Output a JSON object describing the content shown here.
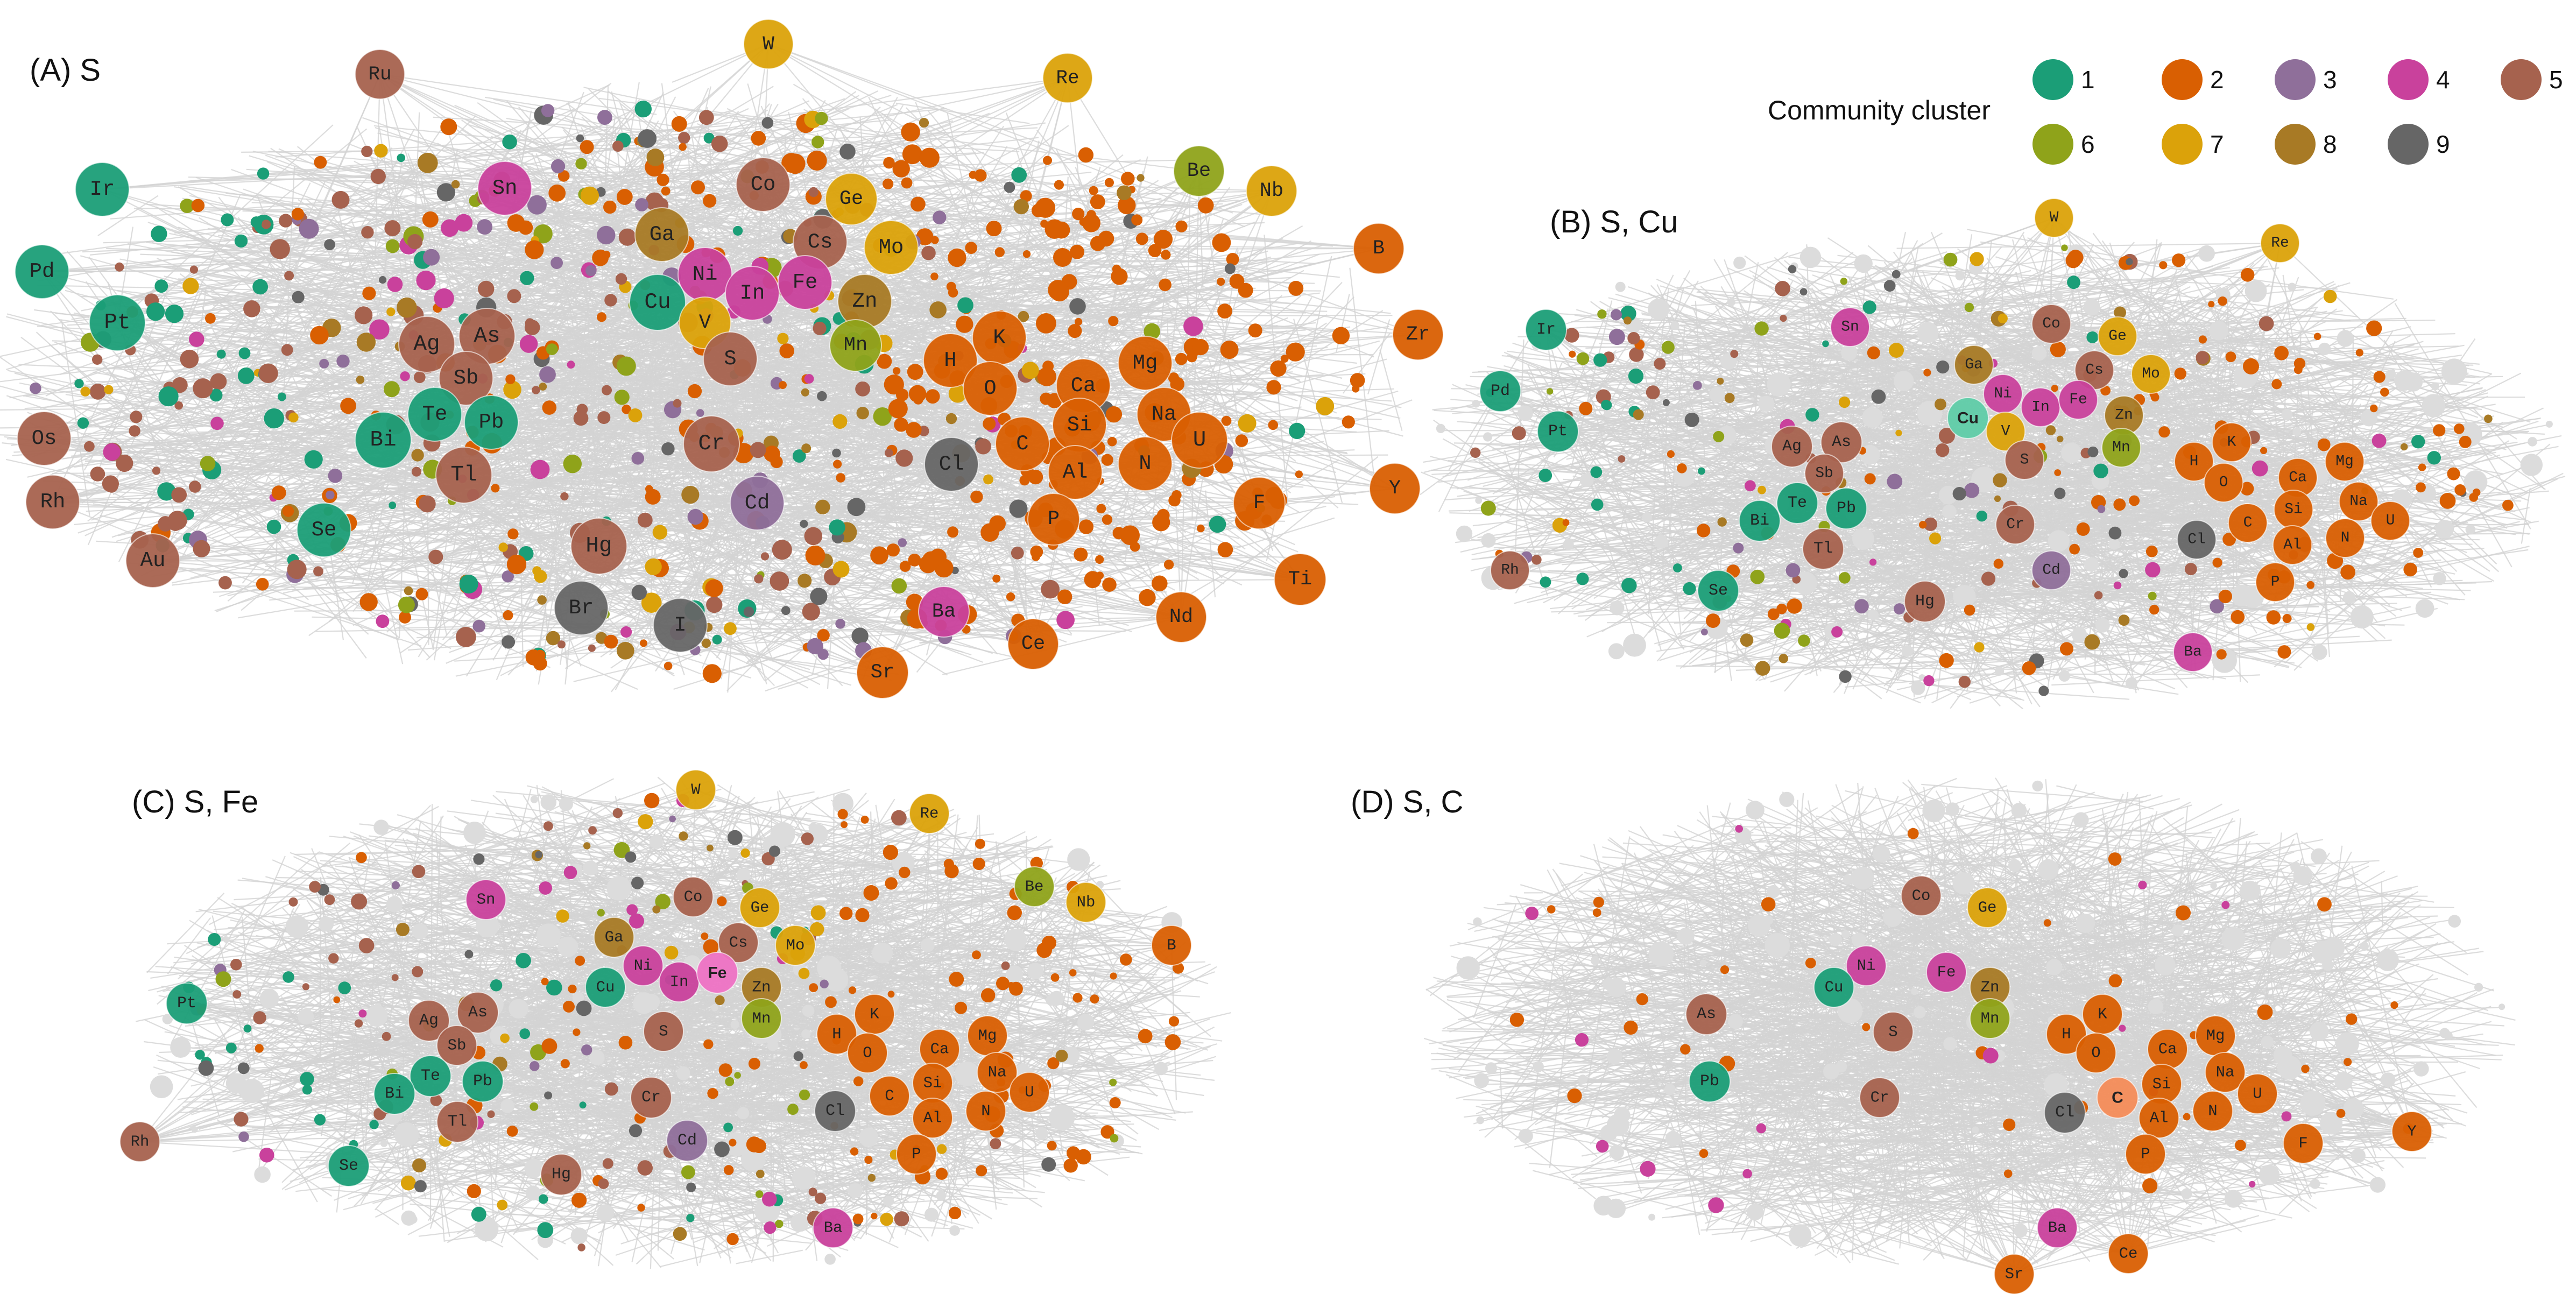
{
  "legend": {
    "title": "Community cluster",
    "items": [
      {
        "id": 1,
        "label": "1",
        "color": "#1b9e77"
      },
      {
        "id": 2,
        "label": "2",
        "color": "#d95f02"
      },
      {
        "id": 3,
        "label": "3",
        "color": "#8f6f9a"
      },
      {
        "id": 4,
        "label": "4",
        "color": "#c9419c"
      },
      {
        "id": 5,
        "label": "5",
        "color": "#a6624e"
      },
      {
        "id": 6,
        "label": "6",
        "color": "#8fa31a"
      },
      {
        "id": 7,
        "label": "7",
        "color": "#dba20a"
      },
      {
        "id": 8,
        "label": "8",
        "color": "#a87a25"
      },
      {
        "id": 9,
        "label": "9",
        "color": "#666666"
      }
    ]
  },
  "edge_color": "#d3d3d3",
  "panels": [
    {
      "id": "A",
      "title": "(A) S",
      "highlight": null,
      "nodes": [
        [
          "Ru",
          5
        ],
        [
          "W",
          7
        ],
        [
          "Re",
          7
        ],
        [
          "Ir",
          1
        ],
        [
          "Sn",
          4
        ],
        [
          "Co",
          5
        ],
        [
          "Ge",
          7
        ],
        [
          "Be",
          6
        ],
        [
          "Nb",
          7
        ],
        [
          "Ga",
          8
        ],
        [
          "Cs",
          5
        ],
        [
          "Mo",
          7
        ],
        [
          "B",
          2
        ],
        [
          "Pd",
          1
        ],
        [
          "Ni",
          4
        ],
        [
          "In",
          4
        ],
        [
          "Fe",
          4
        ],
        [
          "Zn",
          8
        ],
        [
          "Pt",
          1
        ],
        [
          "Cu",
          1
        ],
        [
          "V",
          7
        ],
        [
          "Mn",
          6
        ],
        [
          "Zr",
          2
        ],
        [
          "Ag",
          5
        ],
        [
          "As",
          5
        ],
        [
          "S",
          5
        ],
        [
          "H",
          2
        ],
        [
          "K",
          2
        ],
        [
          "Mg",
          2
        ],
        [
          "Sb",
          5
        ],
        [
          "O",
          2
        ],
        [
          "Ca",
          2
        ],
        [
          "Te",
          1
        ],
        [
          "Pb",
          1
        ],
        [
          "Na",
          2
        ],
        [
          "Os",
          5
        ],
        [
          "Bi",
          1
        ],
        [
          "Si",
          2
        ],
        [
          "Cr",
          5
        ],
        [
          "C",
          2
        ],
        [
          "U",
          2
        ],
        [
          "Tl",
          5
        ],
        [
          "Cl",
          9
        ],
        [
          "Al",
          2
        ],
        [
          "N",
          2
        ],
        [
          "Rh",
          5
        ],
        [
          "Cd",
          3
        ],
        [
          "F",
          2
        ],
        [
          "Y",
          2
        ],
        [
          "Se",
          1
        ],
        [
          "P",
          2
        ],
        [
          "Hg",
          5
        ],
        [
          "Au",
          5
        ],
        [
          "Ti",
          2
        ],
        [
          "Br",
          9
        ],
        [
          "Ba",
          4
        ],
        [
          "I",
          9
        ],
        [
          "Nd",
          2
        ],
        [
          "Ce",
          2
        ],
        [
          "Sr",
          2
        ]
      ]
    },
    {
      "id": "B",
      "title": "(B) S, Cu",
      "highlight": "Cu",
      "nodes": [
        [
          "W",
          7
        ],
        [
          "Re",
          7
        ],
        [
          "Sn",
          4
        ],
        [
          "Co",
          5
        ],
        [
          "Ge",
          7
        ],
        [
          "Ir",
          1
        ],
        [
          "Ga",
          8
        ],
        [
          "Cs",
          5
        ],
        [
          "Mo",
          7
        ],
        [
          "Pd",
          1
        ],
        [
          "Ni",
          4
        ],
        [
          "In",
          4
        ],
        [
          "Fe",
          4
        ],
        [
          "Zn",
          8
        ],
        [
          "Cu",
          1
        ],
        [
          "V",
          7
        ],
        [
          "Pt",
          1
        ],
        [
          "Mn",
          6
        ],
        [
          "Ag",
          5
        ],
        [
          "As",
          5
        ],
        [
          "S",
          5
        ],
        [
          "H",
          2
        ],
        [
          "K",
          2
        ],
        [
          "Mg",
          2
        ],
        [
          "Sb",
          5
        ],
        [
          "O",
          2
        ],
        [
          "Ca",
          2
        ],
        [
          "Te",
          1
        ],
        [
          "Pb",
          1
        ],
        [
          "Na",
          2
        ],
        [
          "Si",
          2
        ],
        [
          "Bi",
          1
        ],
        [
          "Cr",
          5
        ],
        [
          "C",
          2
        ],
        [
          "U",
          2
        ],
        [
          "Tl",
          5
        ],
        [
          "Cl",
          9
        ],
        [
          "Al",
          2
        ],
        [
          "N",
          2
        ],
        [
          "Rh",
          5
        ],
        [
          "Cd",
          3
        ],
        [
          "P",
          2
        ],
        [
          "Se",
          1
        ],
        [
          "Hg",
          5
        ],
        [
          "Ba",
          4
        ]
      ]
    },
    {
      "id": "C",
      "title": "(C) S, Fe",
      "highlight": "Fe",
      "nodes": [
        [
          "W",
          7
        ],
        [
          "Re",
          7
        ],
        [
          "Sn",
          4
        ],
        [
          "Co",
          5
        ],
        [
          "Ge",
          7
        ],
        [
          "Be",
          6
        ],
        [
          "Nb",
          7
        ],
        [
          "Ga",
          8
        ],
        [
          "Cs",
          5
        ],
        [
          "Mo",
          7
        ],
        [
          "B",
          2
        ],
        [
          "Ni",
          4
        ],
        [
          "In",
          4
        ],
        [
          "Fe",
          4
        ],
        [
          "Pt",
          1
        ],
        [
          "Cu",
          1
        ],
        [
          "Zn",
          8
        ],
        [
          "Mn",
          6
        ],
        [
          "Ag",
          5
        ],
        [
          "As",
          5
        ],
        [
          "S",
          5
        ],
        [
          "H",
          2
        ],
        [
          "K",
          2
        ],
        [
          "Mg",
          2
        ],
        [
          "Sb",
          5
        ],
        [
          "O",
          2
        ],
        [
          "Ca",
          2
        ],
        [
          "Te",
          1
        ],
        [
          "Pb",
          1
        ],
        [
          "Na",
          2
        ],
        [
          "Si",
          2
        ],
        [
          "Bi",
          1
        ],
        [
          "Cr",
          5
        ],
        [
          "C",
          2
        ],
        [
          "U",
          2
        ],
        [
          "Cl",
          9
        ],
        [
          "Tl",
          5
        ],
        [
          "Al",
          2
        ],
        [
          "N",
          2
        ],
        [
          "Rh",
          5
        ],
        [
          "Cd",
          3
        ],
        [
          "P",
          2
        ],
        [
          "Se",
          1
        ],
        [
          "Hg",
          5
        ],
        [
          "Ba",
          4
        ]
      ]
    },
    {
      "id": "D",
      "title": "(D) S, C",
      "highlight": "C",
      "nodes": [
        [
          "Co",
          5
        ],
        [
          "Ge",
          7
        ],
        [
          "Ni",
          4
        ],
        [
          "Fe",
          4
        ],
        [
          "Zn",
          8
        ],
        [
          "Cu",
          1
        ],
        [
          "Mn",
          6
        ],
        [
          "As",
          5
        ],
        [
          "S",
          5
        ],
        [
          "H",
          2
        ],
        [
          "K",
          2
        ],
        [
          "Mg",
          2
        ],
        [
          "O",
          2
        ],
        [
          "Ca",
          2
        ],
        [
          "Pb",
          1
        ],
        [
          "Na",
          2
        ],
        [
          "Cr",
          5
        ],
        [
          "Si",
          2
        ],
        [
          "C",
          2
        ],
        [
          "U",
          2
        ],
        [
          "Cl",
          9
        ],
        [
          "Al",
          2
        ],
        [
          "N",
          2
        ],
        [
          "F",
          2
        ],
        [
          "Y",
          2
        ],
        [
          "P",
          2
        ],
        [
          "Ba",
          4
        ],
        [
          "Sr",
          2
        ],
        [
          "Ce",
          2
        ]
      ]
    }
  ]
}
